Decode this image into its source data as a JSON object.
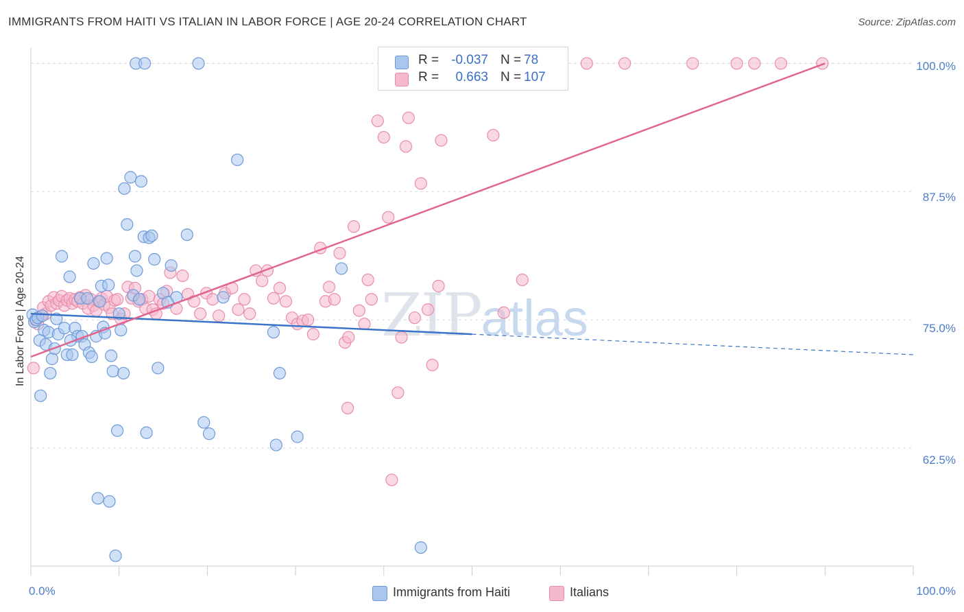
{
  "title": "IMMIGRANTS FROM HAITI VS ITALIAN IN LABOR FORCE | AGE 20-24 CORRELATION CHART",
  "source": "Source: ZipAtlas.com",
  "watermark": {
    "zip": "ZIP",
    "atlas": "atlas"
  },
  "colors": {
    "blue_fill": "#a9c6ef",
    "blue_stroke": "#6e9ad8",
    "blue_line": "#3a74c8",
    "pink_fill": "#f5b8cc",
    "pink_stroke": "#e98cab",
    "pink_line": "#e0658f",
    "tick_label": "#4a7dc9",
    "grid": "#d9d9d9"
  },
  "legend": {
    "series1": {
      "r_label": "R =",
      "r_value": "-0.037",
      "n_label": "N =",
      "n_value": "78"
    },
    "series2": {
      "r_label": "R =",
      "r_value": "0.663",
      "n_label": "N =",
      "n_value": "107"
    }
  },
  "bottom_legend": [
    "Immigrants from Haiti",
    "Italians"
  ],
  "chart_data": {
    "type": "scatter",
    "title": "IMMIGRANTS FROM HAITI VS ITALIAN IN LABOR FORCE | AGE 20-24 CORRELATION CHART",
    "xlabel": "",
    "ylabel": "In Labor Force | Age 20-24",
    "xlim": [
      0,
      100
    ],
    "ylim": [
      51,
      101.5
    ],
    "x_tick_labels": [
      "0.0%",
      "100.0%"
    ],
    "y_ticks": [
      62.5,
      75.0,
      87.5,
      100.0
    ],
    "y_tick_labels": [
      "62.5%",
      "75.0%",
      "87.5%",
      "100.0%"
    ],
    "grid": true,
    "legend_position": "top-center",
    "series": [
      {
        "name": "Immigrants from Haiti",
        "color": "#a9c6ef",
        "R": -0.037,
        "N": 78,
        "trend": {
          "x": [
            0,
            50
          ],
          "y": [
            75.6,
            73.6
          ],
          "dashed_to_x": 100,
          "dashed_end_y": 71.6
        },
        "points": [
          [
            0.2,
            75.5
          ],
          [
            0.4,
            74.8
          ],
          [
            0.6,
            75.0
          ],
          [
            0.8,
            75.2
          ],
          [
            1.0,
            73.0
          ],
          [
            1.1,
            67.6
          ],
          [
            1.3,
            75.4
          ],
          [
            1.5,
            74.0
          ],
          [
            1.7,
            72.6
          ],
          [
            2.0,
            73.8
          ],
          [
            2.2,
            69.8
          ],
          [
            2.4,
            71.2
          ],
          [
            2.7,
            72.2
          ],
          [
            2.9,
            75.1
          ],
          [
            3.1,
            73.6
          ],
          [
            3.5,
            81.2
          ],
          [
            3.8,
            74.2
          ],
          [
            4.1,
            71.6
          ],
          [
            4.4,
            79.2
          ],
          [
            4.7,
            71.6
          ],
          [
            5.0,
            74.2
          ],
          [
            5.3,
            73.4
          ],
          [
            5.6,
            77.1
          ],
          [
            5.8,
            73.4
          ],
          [
            6.1,
            72.6
          ],
          [
            6.4,
            77.1
          ],
          [
            6.6,
            71.8
          ],
          [
            6.9,
            71.4
          ],
          [
            7.1,
            80.5
          ],
          [
            7.4,
            73.4
          ],
          [
            7.8,
            76.8
          ],
          [
            7.6,
            57.6
          ],
          [
            8.0,
            78.3
          ],
          [
            8.2,
            74.3
          ],
          [
            8.4,
            73.7
          ],
          [
            8.6,
            81.0
          ],
          [
            8.8,
            78.4
          ],
          [
            8.9,
            57.3
          ],
          [
            9.1,
            71.5
          ],
          [
            9.3,
            70.0
          ],
          [
            9.6,
            52.0
          ],
          [
            9.8,
            64.2
          ],
          [
            10.0,
            75.6
          ],
          [
            10.2,
            74.0
          ],
          [
            10.5,
            69.8
          ],
          [
            10.6,
            87.8
          ],
          [
            10.9,
            84.3
          ],
          [
            11.3,
            88.9
          ],
          [
            11.6,
            77.4
          ],
          [
            11.8,
            81.2
          ],
          [
            12.0,
            79.8
          ],
          [
            12.3,
            77.0
          ],
          [
            12.5,
            88.5
          ],
          [
            12.8,
            83.1
          ],
          [
            13.1,
            64.0
          ],
          [
            13.4,
            83.0
          ],
          [
            13.7,
            83.2
          ],
          [
            14.0,
            80.9
          ],
          [
            14.4,
            70.3
          ],
          [
            15.0,
            77.6
          ],
          [
            15.9,
            80.3
          ],
          [
            16.5,
            77.2
          ],
          [
            17.7,
            83.3
          ],
          [
            19.6,
            65.0
          ],
          [
            20.2,
            63.9
          ],
          [
            21.8,
            77.2
          ],
          [
            23.4,
            90.6
          ],
          [
            27.5,
            73.8
          ],
          [
            27.8,
            62.8
          ],
          [
            28.2,
            69.8
          ],
          [
            30.2,
            63.6
          ],
          [
            35.2,
            80.0
          ],
          [
            44.2,
            52.8
          ],
          [
            11.9,
            100.0
          ],
          [
            12.9,
            100.0
          ],
          [
            19.0,
            100.0
          ],
          [
            15.5,
            76.7
          ],
          [
            4.5,
            73.0
          ]
        ]
      },
      {
        "name": "Italians",
        "color": "#f5b8cc",
        "R": 0.663,
        "N": 107,
        "trend": {
          "x": [
            0,
            90
          ],
          "y": [
            71.4,
            100.0
          ]
        },
        "points": [
          [
            0.3,
            70.3
          ],
          [
            0.5,
            75.0
          ],
          [
            0.8,
            74.6
          ],
          [
            1.1,
            75.3
          ],
          [
            1.4,
            76.2
          ],
          [
            1.7,
            75.6
          ],
          [
            2.0,
            76.8
          ],
          [
            2.3,
            76.4
          ],
          [
            2.6,
            77.2
          ],
          [
            2.9,
            76.6
          ],
          [
            3.2,
            76.9
          ],
          [
            3.5,
            77.3
          ],
          [
            3.8,
            76.4
          ],
          [
            4.1,
            76.9
          ],
          [
            4.4,
            77.1
          ],
          [
            4.7,
            76.6
          ],
          [
            5.0,
            77.0
          ],
          [
            5.3,
            76.8
          ],
          [
            5.6,
            77.2
          ],
          [
            5.9,
            76.6
          ],
          [
            6.2,
            77.4
          ],
          [
            6.5,
            76.1
          ],
          [
            6.8,
            77.0
          ],
          [
            7.1,
            76.4
          ],
          [
            7.4,
            75.9
          ],
          [
            7.7,
            76.8
          ],
          [
            8.0,
            77.1
          ],
          [
            8.3,
            76.5
          ],
          [
            8.6,
            77.3
          ],
          [
            8.9,
            76.2
          ],
          [
            9.2,
            75.6
          ],
          [
            9.5,
            76.9
          ],
          [
            9.8,
            77.0
          ],
          [
            10.2,
            75.1
          ],
          [
            10.6,
            75.6
          ],
          [
            11.0,
            78.2
          ],
          [
            11.4,
            77.1
          ],
          [
            11.8,
            78.1
          ],
          [
            12.2,
            76.8
          ],
          [
            12.6,
            77.0
          ],
          [
            13.0,
            76.1
          ],
          [
            13.4,
            77.3
          ],
          [
            13.8,
            76.0
          ],
          [
            14.2,
            75.6
          ],
          [
            14.6,
            77.0
          ],
          [
            15.0,
            76.6
          ],
          [
            15.4,
            77.8
          ],
          [
            15.8,
            79.6
          ],
          [
            16.5,
            76.1
          ],
          [
            17.2,
            79.3
          ],
          [
            17.8,
            77.5
          ],
          [
            18.5,
            76.8
          ],
          [
            19.2,
            75.6
          ],
          [
            19.9,
            77.6
          ],
          [
            20.6,
            77.0
          ],
          [
            21.3,
            75.4
          ],
          [
            22.0,
            77.6
          ],
          [
            22.8,
            78.1
          ],
          [
            23.5,
            76.0
          ],
          [
            24.2,
            77.0
          ],
          [
            24.8,
            75.6
          ],
          [
            25.5,
            79.8
          ],
          [
            26.2,
            78.8
          ],
          [
            26.8,
            79.8
          ],
          [
            27.5,
            77.1
          ],
          [
            28.2,
            78.1
          ],
          [
            28.9,
            76.8
          ],
          [
            29.6,
            75.2
          ],
          [
            30.2,
            74.6
          ],
          [
            30.8,
            74.9
          ],
          [
            31.4,
            75.0
          ],
          [
            32.0,
            73.6
          ],
          [
            32.8,
            82.0
          ],
          [
            33.4,
            76.8
          ],
          [
            33.8,
            78.2
          ],
          [
            34.4,
            77.0
          ],
          [
            35.0,
            81.5
          ],
          [
            35.6,
            72.8
          ],
          [
            36.0,
            73.3
          ],
          [
            36.6,
            84.1
          ],
          [
            37.2,
            75.9
          ],
          [
            37.8,
            74.6
          ],
          [
            38.2,
            78.9
          ],
          [
            38.6,
            77.0
          ],
          [
            39.3,
            94.4
          ],
          [
            40.0,
            92.8
          ],
          [
            40.5,
            85.0
          ],
          [
            40.9,
            59.4
          ],
          [
            41.6,
            67.9
          ],
          [
            42.0,
            73.3
          ],
          [
            42.5,
            91.9
          ],
          [
            42.8,
            94.7
          ],
          [
            43.5,
            75.2
          ],
          [
            44.2,
            88.3
          ],
          [
            45.0,
            76.0
          ],
          [
            45.5,
            70.6
          ],
          [
            46.5,
            92.5
          ],
          [
            52.4,
            93.0
          ],
          [
            53.6,
            75.7
          ],
          [
            55.7,
            78.9
          ],
          [
            35.9,
            66.4
          ],
          [
            46.2,
            78.3
          ],
          [
            63.0,
            100.0
          ],
          [
            67.3,
            100.0
          ],
          [
            75.0,
            100.0
          ],
          [
            80.0,
            100.0
          ],
          [
            82.0,
            100.0
          ],
          [
            85.0,
            100.0
          ],
          [
            89.7,
            100.0
          ]
        ]
      }
    ]
  },
  "y_axis_label": "In Labor Force | Age 20-24",
  "y_tick_labels": [
    "100.0%",
    "87.5%",
    "75.0%",
    "62.5%"
  ],
  "x_tick_labels": [
    "0.0%",
    "100.0%"
  ]
}
